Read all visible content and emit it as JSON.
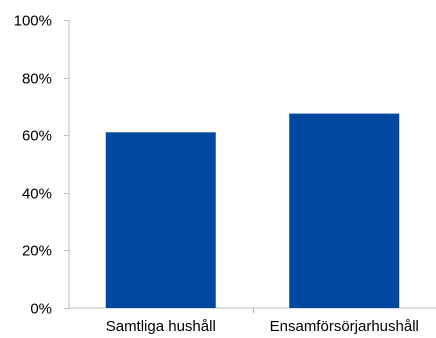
{
  "chart_data": {
    "type": "bar",
    "categories": [
      "Samtliga hushåll",
      "Ensamförsörjarhushåll"
    ],
    "values": [
      61,
      67.5
    ],
    "ylim": [
      0,
      100
    ],
    "yticks": [
      0,
      20,
      40,
      60,
      80,
      100
    ],
    "ytick_labels": [
      "0%",
      "20%",
      "40%",
      "60%",
      "80%",
      "100%"
    ],
    "title": "",
    "xlabel": "",
    "ylabel": "",
    "grid": false,
    "bar_color": "#0047a0",
    "axis_color": "#bfbfbf"
  }
}
